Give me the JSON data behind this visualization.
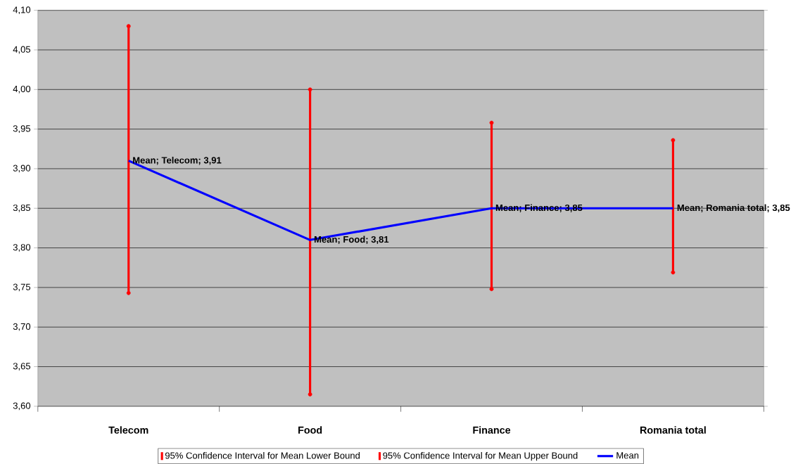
{
  "chart_data": {
    "type": "line",
    "categories": [
      "Telecom",
      "Food",
      "Finance",
      "Romania total"
    ],
    "series": [
      {
        "name": "95% Confidence Interval for Mean Lower Bound",
        "type": "scatter",
        "marker": "none",
        "color": "#ff0000",
        "values": [
          3.743,
          3.615,
          3.748,
          3.769
        ]
      },
      {
        "name": "95% Confidence Interval for Mean Upper Bound",
        "type": "scatter",
        "marker": "none",
        "color": "#ff0000",
        "values": [
          4.08,
          4.0,
          3.958,
          3.936
        ]
      },
      {
        "name": "Mean",
        "color": "#0000ff",
        "values": [
          3.91,
          3.81,
          3.85,
          3.85
        ],
        "value_labels": [
          "Mean; Telecom; 3,91",
          "Mean; Food; 3,81",
          "Mean; Finance; 3,85",
          "Mean; Romania total; 3,85"
        ]
      }
    ],
    "ylim": [
      3.6,
      4.1
    ],
    "yticks": [
      {
        "value": 3.6,
        "label": "3,60"
      },
      {
        "value": 3.65,
        "label": "3,65"
      },
      {
        "value": 3.7,
        "label": "3,70"
      },
      {
        "value": 3.75,
        "label": "3,75"
      },
      {
        "value": 3.8,
        "label": "3,80"
      },
      {
        "value": 3.85,
        "label": "3,85"
      },
      {
        "value": 3.9,
        "label": "3,90"
      },
      {
        "value": 3.95,
        "label": "3,95"
      },
      {
        "value": 4.0,
        "label": "4,00"
      },
      {
        "value": 4.05,
        "label": "4,05"
      },
      {
        "value": 4.1,
        "label": "4,10"
      }
    ],
    "grid": "y",
    "legend": "bottom"
  }
}
